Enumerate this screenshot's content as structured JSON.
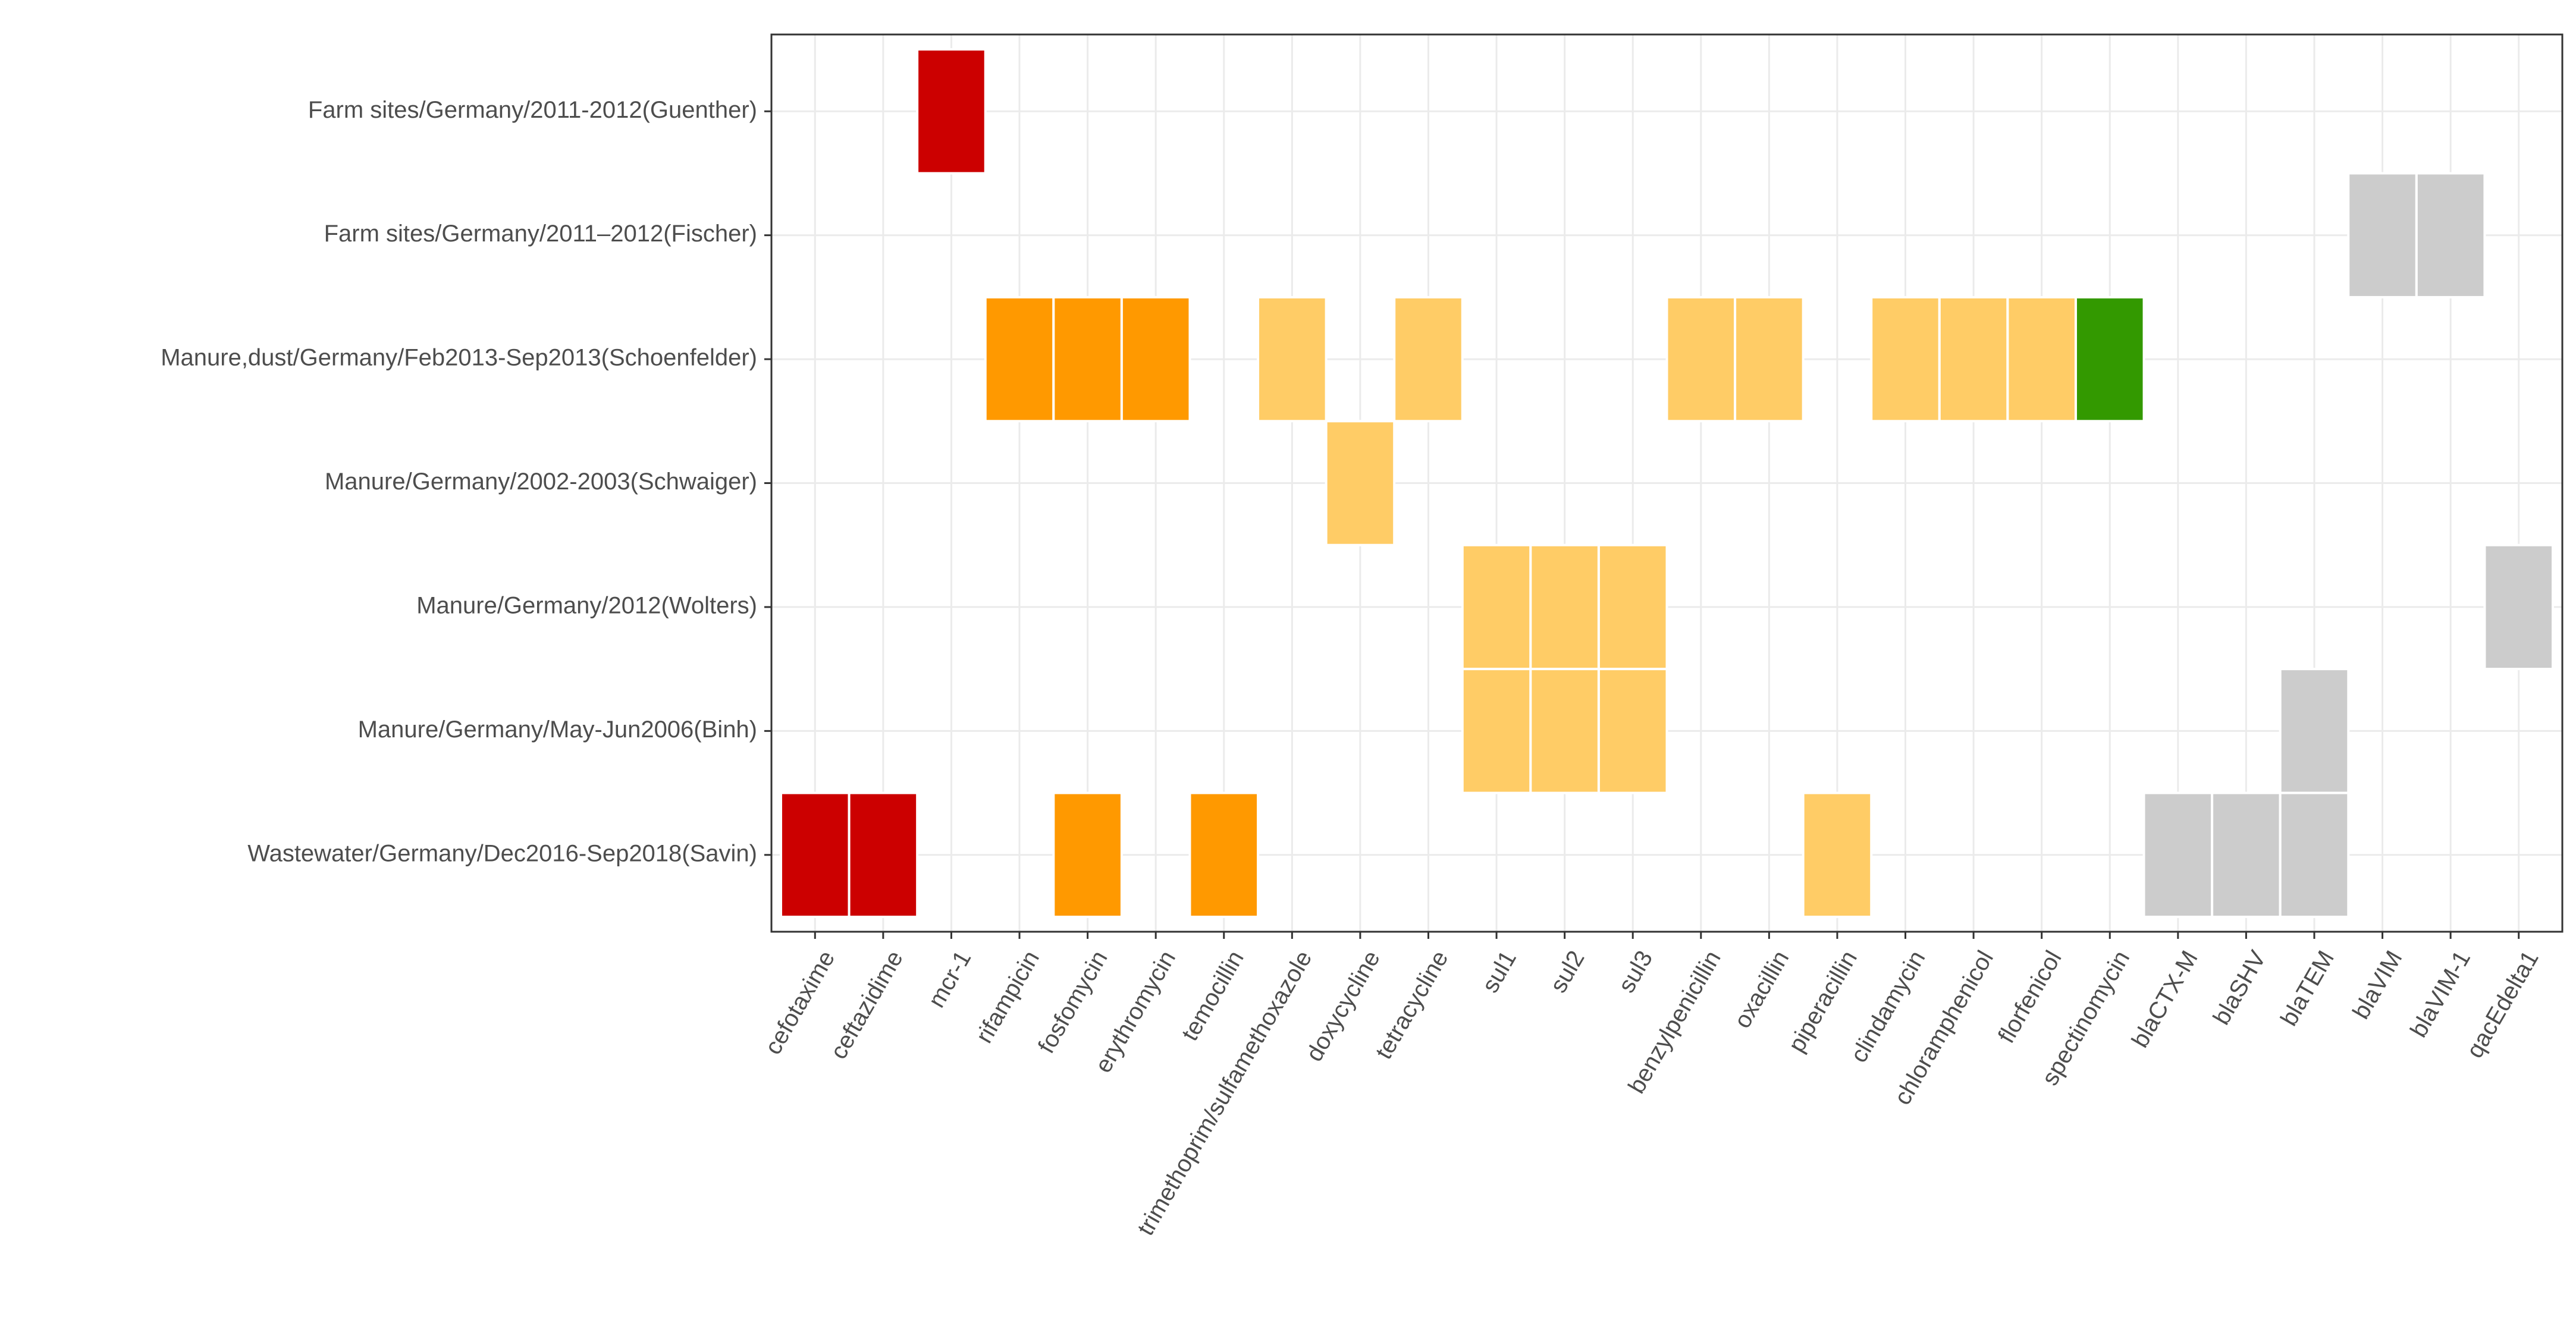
{
  "chart_data": {
    "type": "heatmap",
    "title": "",
    "xlabel": "",
    "ylabel": "",
    "x_categories": [
      "cefotaxime",
      "ceftazidime",
      "mcr-1",
      "rifampicin",
      "fosfomycin",
      "erythromycin",
      "temocillin",
      "trimethoprim/sulfamethoxazole",
      "doxycycline",
      "tetracycline",
      "sul1",
      "sul2",
      "sul3",
      "benzylpenicillin",
      "oxacillin",
      "piperacillin",
      "clindamycin",
      "chloramphenicol",
      "florfenicol",
      "spectinomycin",
      "blaCTX-M",
      "blaSHV",
      "blaTEM",
      "blaVIM",
      "blaVIM-1",
      "qacEdelta1"
    ],
    "y_categories": [
      "Farm sites/Germany/2011-2012(Guenther)",
      "Farm sites/Germany/2011–2012(Fischer)",
      "Manure,dust/Germany/Feb2013-Sep2013(Schoenfelder)",
      "Manure/Germany/2002-2003(Schwaiger)",
      "Manure/Germany/2012(Wolters)",
      "Manure/Germany/May-Jun2006(Binh)",
      "Wastewater/Germany/Dec2016-Sep2018(Savin)"
    ],
    "palette": {
      "red": "#cc0000",
      "orange": "#ff9900",
      "lightorange": "#ffcc66",
      "green": "#339900",
      "grey": "#cccccc"
    },
    "cells": [
      {
        "row": "Farm sites/Germany/2011-2012(Guenther)",
        "col": "mcr-1",
        "color": "red"
      },
      {
        "row": "Farm sites/Germany/2011–2012(Fischer)",
        "col": "blaVIM",
        "color": "grey"
      },
      {
        "row": "Farm sites/Germany/2011–2012(Fischer)",
        "col": "blaVIM-1",
        "color": "grey"
      },
      {
        "row": "Manure,dust/Germany/Feb2013-Sep2013(Schoenfelder)",
        "col": "rifampicin",
        "color": "orange"
      },
      {
        "row": "Manure,dust/Germany/Feb2013-Sep2013(Schoenfelder)",
        "col": "fosfomycin",
        "color": "orange"
      },
      {
        "row": "Manure,dust/Germany/Feb2013-Sep2013(Schoenfelder)",
        "col": "erythromycin",
        "color": "orange"
      },
      {
        "row": "Manure,dust/Germany/Feb2013-Sep2013(Schoenfelder)",
        "col": "trimethoprim/sulfamethoxazole",
        "color": "lightorange"
      },
      {
        "row": "Manure,dust/Germany/Feb2013-Sep2013(Schoenfelder)",
        "col": "tetracycline",
        "color": "lightorange"
      },
      {
        "row": "Manure,dust/Germany/Feb2013-Sep2013(Schoenfelder)",
        "col": "benzylpenicillin",
        "color": "lightorange"
      },
      {
        "row": "Manure,dust/Germany/Feb2013-Sep2013(Schoenfelder)",
        "col": "oxacillin",
        "color": "lightorange"
      },
      {
        "row": "Manure,dust/Germany/Feb2013-Sep2013(Schoenfelder)",
        "col": "clindamycin",
        "color": "lightorange"
      },
      {
        "row": "Manure,dust/Germany/Feb2013-Sep2013(Schoenfelder)",
        "col": "chloramphenicol",
        "color": "lightorange"
      },
      {
        "row": "Manure,dust/Germany/Feb2013-Sep2013(Schoenfelder)",
        "col": "florfenicol",
        "color": "lightorange"
      },
      {
        "row": "Manure,dust/Germany/Feb2013-Sep2013(Schoenfelder)",
        "col": "spectinomycin",
        "color": "green"
      },
      {
        "row": "Manure/Germany/2002-2003(Schwaiger)",
        "col": "doxycycline",
        "color": "lightorange"
      },
      {
        "row": "Manure/Germany/2012(Wolters)",
        "col": "sul1",
        "color": "lightorange"
      },
      {
        "row": "Manure/Germany/2012(Wolters)",
        "col": "sul2",
        "color": "lightorange"
      },
      {
        "row": "Manure/Germany/2012(Wolters)",
        "col": "sul3",
        "color": "lightorange"
      },
      {
        "row": "Manure/Germany/2012(Wolters)",
        "col": "qacEdelta1",
        "color": "grey"
      },
      {
        "row": "Manure/Germany/May-Jun2006(Binh)",
        "col": "sul1",
        "color": "lightorange"
      },
      {
        "row": "Manure/Germany/May-Jun2006(Binh)",
        "col": "sul2",
        "color": "lightorange"
      },
      {
        "row": "Manure/Germany/May-Jun2006(Binh)",
        "col": "sul3",
        "color": "lightorange"
      },
      {
        "row": "Manure/Germany/May-Jun2006(Binh)",
        "col": "blaTEM",
        "color": "grey"
      },
      {
        "row": "Wastewater/Germany/Dec2016-Sep2018(Savin)",
        "col": "cefotaxime",
        "color": "red"
      },
      {
        "row": "Wastewater/Germany/Dec2016-Sep2018(Savin)",
        "col": "ceftazidime",
        "color": "red"
      },
      {
        "row": "Wastewater/Germany/Dec2016-Sep2018(Savin)",
        "col": "fosfomycin",
        "color": "orange"
      },
      {
        "row": "Wastewater/Germany/Dec2016-Sep2018(Savin)",
        "col": "temocillin",
        "color": "orange"
      },
      {
        "row": "Wastewater/Germany/Dec2016-Sep2018(Savin)",
        "col": "piperacillin",
        "color": "lightorange"
      },
      {
        "row": "Wastewater/Germany/Dec2016-Sep2018(Savin)",
        "col": "blaCTX-M",
        "color": "grey"
      },
      {
        "row": "Wastewater/Germany/Dec2016-Sep2018(Savin)",
        "col": "blaSHV",
        "color": "grey"
      },
      {
        "row": "Wastewater/Germany/Dec2016-Sep2018(Savin)",
        "col": "blaTEM",
        "color": "grey"
      }
    ],
    "grid": true,
    "legend": "none"
  }
}
